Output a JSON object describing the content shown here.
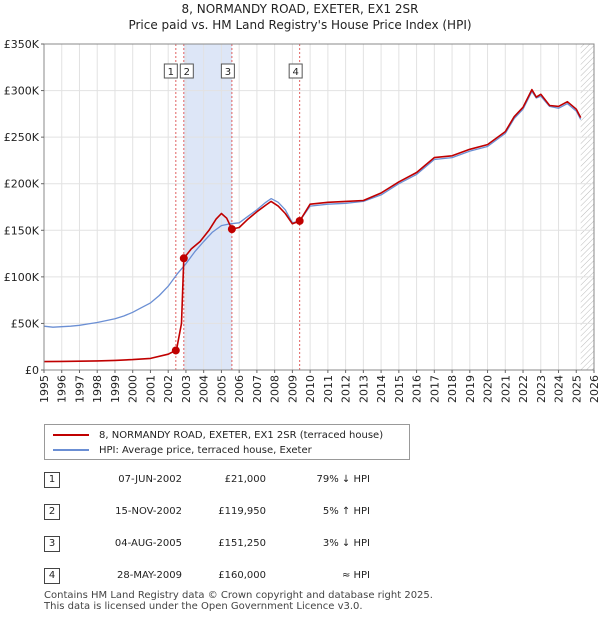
{
  "title_line1": "8, NORMANDY ROAD, EXETER, EX1 2SR",
  "title_line2": "Price paid vs. HM Land Registry's House Price Index (HPI)",
  "legend": {
    "property_label": "8, NORMANDY ROAD, EXETER, EX1 2SR (terraced house)",
    "hpi_label": "HPI: Average price, terraced house, Exeter"
  },
  "colors": {
    "property": "#c00000",
    "hpi": "#6b8fd4",
    "shade": "#dde6f7",
    "marker_line": "#e06060"
  },
  "transactions": [
    {
      "num": "1",
      "date": "07-JUN-2002",
      "price": "£21,000",
      "hpi": "79% ↓ HPI"
    },
    {
      "num": "2",
      "date": "15-NOV-2002",
      "price": "£119,950",
      "hpi": "5% ↑ HPI"
    },
    {
      "num": "3",
      "date": "04-AUG-2005",
      "price": "£151,250",
      "hpi": "3% ↓ HPI"
    },
    {
      "num": "4",
      "date": "28-MAY-2009",
      "price": "£160,000",
      "hpi": "≈ HPI"
    }
  ],
  "footer_line1": "Contains HM Land Registry data © Crown copyright and database right 2025.",
  "footer_line2": "This data is licensed under the Open Government Licence v3.0.",
  "chart_data": {
    "type": "line",
    "title": "Price paid vs. HM Land Registry's House Price Index (HPI)",
    "xlim": [
      1995,
      2026
    ],
    "ylim": [
      0,
      350000
    ],
    "y_ticks": [
      0,
      50000,
      100000,
      150000,
      200000,
      250000,
      300000,
      350000
    ],
    "y_tick_labels": [
      "£0",
      "£50K",
      "£100K",
      "£150K",
      "£200K",
      "£250K",
      "£300K",
      "£350K"
    ],
    "x_ticks": [
      1995,
      1996,
      1997,
      1998,
      1999,
      2000,
      2001,
      2002,
      2003,
      2004,
      2005,
      2006,
      2007,
      2008,
      2009,
      2010,
      2011,
      2012,
      2013,
      2014,
      2015,
      2016,
      2017,
      2018,
      2019,
      2020,
      2021,
      2022,
      2023,
      2024,
      2025,
      2026
    ],
    "shaded_ranges": [
      [
        2002.88,
        2005.59
      ]
    ],
    "data_end": 2025.25,
    "markers": [
      {
        "label": "1",
        "x": 2002.43,
        "y": 21000
      },
      {
        "label": "2",
        "x": 2002.88,
        "y": 119950
      },
      {
        "label": "3",
        "x": 2005.59,
        "y": 151250
      },
      {
        "label": "4",
        "x": 2009.41,
        "y": 160000
      }
    ],
    "series": [
      {
        "name": "8, NORMANDY ROAD, EXETER, EX1 2SR (terraced house)",
        "x": [
          1995.0,
          1996.0,
          1997.0,
          1998.0,
          1999.0,
          2000.0,
          2001.0,
          2002.0,
          2002.43,
          2002.5,
          2002.75,
          2002.88,
          2003.3,
          2003.8,
          2004.3,
          2004.7,
          2005.0,
          2005.3,
          2005.59,
          2006.0,
          2006.5,
          2007.0,
          2007.5,
          2007.8,
          2008.2,
          2008.6,
          2009.0,
          2009.41,
          2010.0,
          2011.0,
          2012.0,
          2013.0,
          2014.0,
          2015.0,
          2016.0,
          2017.0,
          2018.0,
          2019.0,
          2020.0,
          2021.0,
          2021.5,
          2022.0,
          2022.5,
          2022.75,
          2023.0,
          2023.5,
          2024.0,
          2024.5,
          2025.0,
          2025.25
        ],
        "values": [
          9000,
          9200,
          9400,
          9800,
          10300,
          11200,
          12500,
          17000,
          21000,
          25000,
          50000,
          119950,
          130000,
          138000,
          150000,
          162000,
          168000,
          163000,
          151250,
          153000,
          162000,
          170000,
          177000,
          181000,
          176000,
          168000,
          157000,
          160000,
          178000,
          180000,
          181000,
          182000,
          190000,
          202000,
          212000,
          228000,
          230000,
          237000,
          242000,
          256000,
          272000,
          282000,
          301000,
          293000,
          296000,
          284000,
          283000,
          288000,
          280000,
          271000
        ]
      },
      {
        "name": "HPI: Average price, terraced house, Exeter",
        "x": [
          1995.0,
          1995.5,
          1996.0,
          1996.5,
          1997.0,
          1997.5,
          1998.0,
          1998.5,
          1999.0,
          1999.5,
          2000.0,
          2000.5,
          2001.0,
          2001.5,
          2002.0,
          2002.5,
          2003.0,
          2003.5,
          2004.0,
          2004.5,
          2005.0,
          2005.5,
          2006.0,
          2006.5,
          2007.0,
          2007.5,
          2007.8,
          2008.2,
          2008.6,
          2009.0,
          2009.41,
          2010.0,
          2011.0,
          2012.0,
          2013.0,
          2014.0,
          2015.0,
          2016.0,
          2017.0,
          2018.0,
          2019.0,
          2020.0,
          2021.0,
          2021.5,
          2022.0,
          2022.5,
          2022.75,
          2023.0,
          2023.5,
          2024.0,
          2024.5,
          2025.0,
          2025.25
        ],
        "values": [
          47000,
          46000,
          46500,
          47000,
          48000,
          49500,
          51000,
          53000,
          55000,
          58000,
          62000,
          67000,
          72000,
          80000,
          90000,
          103000,
          114000,
          127000,
          138000,
          148000,
          155000,
          157000,
          158000,
          165000,
          172000,
          180000,
          184000,
          180000,
          172000,
          158000,
          160000,
          176000,
          178000,
          179000,
          181000,
          188000,
          200000,
          210000,
          226000,
          228000,
          235000,
          240000,
          254000,
          270000,
          280000,
          299000,
          292000,
          294000,
          283000,
          281000,
          286000,
          278000,
          269000
        ]
      }
    ]
  }
}
